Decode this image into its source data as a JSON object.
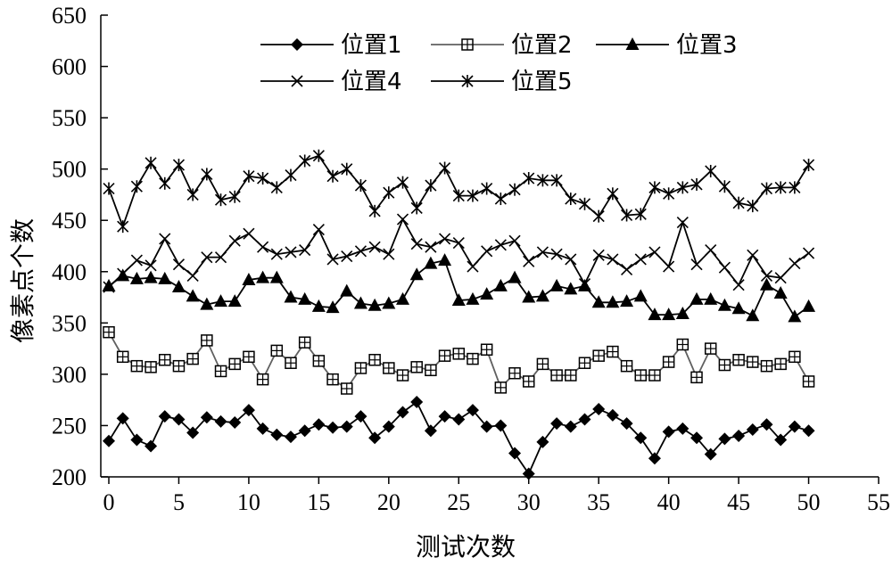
{
  "chart_data": {
    "type": "line",
    "xlabel": "测试次数",
    "ylabel": "像素点个数",
    "xlim": [
      0,
      55
    ],
    "ylim": [
      200,
      650
    ],
    "x_ticks": [
      0,
      5,
      10,
      15,
      20,
      25,
      30,
      35,
      40,
      45,
      50,
      55
    ],
    "y_ticks": [
      200,
      250,
      300,
      350,
      400,
      450,
      500,
      550,
      600,
      650
    ],
    "x_tick_labels": [
      "0",
      "5",
      "10",
      "15",
      "20",
      "25",
      "30",
      "35",
      "40",
      "45",
      "50",
      "55"
    ],
    "y_tick_labels": [
      "200",
      "250",
      "300",
      "350",
      "400",
      "450",
      "500",
      "550",
      "600",
      "650"
    ],
    "grid": false,
    "legend_position": "top",
    "x": [
      0,
      1,
      2,
      3,
      4,
      5,
      6,
      7,
      8,
      9,
      10,
      11,
      12,
      13,
      14,
      15,
      16,
      17,
      18,
      19,
      20,
      21,
      22,
      23,
      24,
      25,
      26,
      27,
      28,
      29,
      30,
      31,
      32,
      33,
      34,
      35,
      36,
      37,
      38,
      39,
      40,
      41,
      42,
      43,
      44,
      45,
      46,
      47,
      48,
      49,
      50
    ],
    "series": [
      {
        "name": "位置1",
        "marker": "diamond",
        "line_color": "#000000",
        "values": [
          235,
          257,
          236,
          230,
          259,
          256,
          243,
          258,
          254,
          253,
          265,
          247,
          241,
          239,
          245,
          251,
          248,
          249,
          259,
          238,
          249,
          263,
          273,
          245,
          259,
          256,
          265,
          249,
          250,
          223,
          203,
          234,
          252,
          249,
          256,
          266,
          260,
          252,
          238,
          218,
          244,
          247,
          238,
          222,
          237,
          240,
          246,
          251,
          236,
          249,
          245
        ]
      },
      {
        "name": "位置2",
        "marker": "square-plus",
        "line_color": "#606060",
        "values": [
          341,
          317,
          308,
          307,
          314,
          308,
          315,
          333,
          303,
          310,
          317,
          295,
          323,
          311,
          331,
          313,
          295,
          286,
          306,
          314,
          306,
          299,
          307,
          304,
          318,
          320,
          315,
          324,
          287,
          301,
          293,
          310,
          299,
          299,
          311,
          318,
          322,
          308,
          299,
          299,
          312,
          329,
          297,
          325,
          309,
          314,
          312,
          308,
          310,
          317,
          293
        ]
      },
      {
        "name": "位置3",
        "marker": "triangle",
        "line_color": "#000000",
        "values": [
          386,
          396,
          393,
          394,
          393,
          385,
          376,
          368,
          371,
          371,
          392,
          394,
          394,
          375,
          373,
          366,
          365,
          381,
          369,
          367,
          369,
          373,
          397,
          408,
          411,
          372,
          373,
          378,
          386,
          394,
          375,
          376,
          386,
          383,
          386,
          370,
          370,
          371,
          376,
          358,
          358,
          359,
          373,
          373,
          367,
          364,
          357,
          387,
          379,
          356,
          366
        ]
      },
      {
        "name": "位置4",
        "marker": "x",
        "line_color": "#000000",
        "values": [
          385,
          398,
          411,
          406,
          432,
          407,
          396,
          414,
          414,
          430,
          437,
          424,
          417,
          419,
          421,
          441,
          412,
          415,
          420,
          424,
          417,
          451,
          427,
          424,
          432,
          428,
          405,
          420,
          426,
          430,
          410,
          419,
          417,
          412,
          388,
          416,
          412,
          402,
          412,
          419,
          405,
          448,
          407,
          421,
          404,
          387,
          416,
          396,
          394,
          408,
          418
        ]
      },
      {
        "name": "位置5",
        "marker": "star",
        "line_color": "#000000",
        "values": [
          481,
          444,
          483,
          506,
          486,
          504,
          475,
          495,
          470,
          473,
          493,
          491,
          482,
          494,
          508,
          513,
          493,
          500,
          484,
          459,
          477,
          487,
          462,
          484,
          501,
          474,
          474,
          481,
          471,
          480,
          491,
          489,
          489,
          471,
          466,
          454,
          476,
          455,
          456,
          482,
          476,
          482,
          485,
          498,
          483,
          467,
          464,
          481,
          482,
          482,
          504
        ]
      }
    ]
  }
}
